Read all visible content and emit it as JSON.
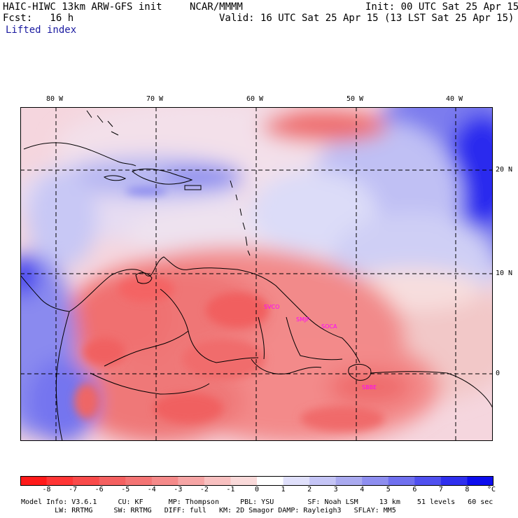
{
  "header": {
    "model_title": "HAIC-HIWC 13km ARW-GFS init",
    "org": "NCAR/MMMM",
    "init": "Init: 00 UTC Sat 25 Apr 15",
    "fcst": "Fcst:   16 h",
    "valid": "Valid: 16 UTC Sat 25 Apr 15 (13 LST Sat 25 Apr 15)",
    "field": "Lifted index"
  },
  "map": {
    "lon_labels": [
      "80 W",
      "70 W",
      "60 W",
      "50 W",
      "40 W"
    ],
    "lat_labels": [
      "20 N",
      "10 N",
      "0"
    ],
    "stations": [
      "SVCO",
      "SMJP",
      "SOCA",
      "SBBE"
    ],
    "station_color": "#ff00ff",
    "gridline_color": "#000000"
  },
  "colorbar": {
    "ticks": [
      "-8",
      "-7",
      "-6",
      "-5",
      "-4",
      "-3",
      "-2",
      "-1",
      "0",
      "1",
      "2",
      "3",
      "4",
      "5",
      "6",
      "7",
      "8"
    ],
    "unit": "°C",
    "colors": [
      "#ff1a1a",
      "#ff3535",
      "#f94a4a",
      "#f46060",
      "#f47474",
      "#f58a8a",
      "#f6a5a5",
      "#f8c0c0",
      "#fadada",
      "#ffffff",
      "#e0e0fb",
      "#c5c5f6",
      "#aaaaf0",
      "#8e8ef0",
      "#7070ef",
      "#5050ef",
      "#2f2fee",
      "#0d0dee"
    ]
  },
  "footer": {
    "line1": "Model Info: V3.6.1     CU: KF      MP: Thompson     PBL: YSU        SF: Noah LSM     13 km    51 levels   60 sec",
    "line2": "        LW: RRTMG     SW: RRTMG   DIFF: full   KM: 2D Smagor DAMP: Rayleigh3   SFLAY: MM5"
  }
}
